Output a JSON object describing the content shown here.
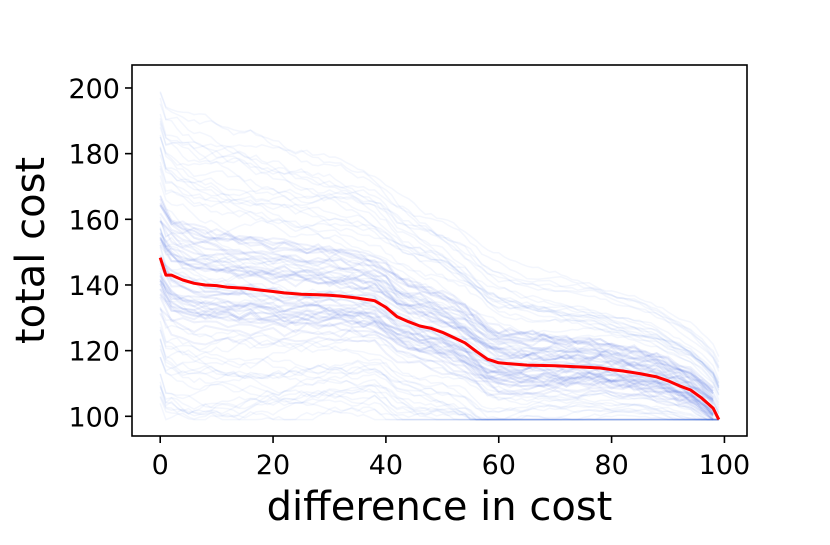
{
  "chart_data": {
    "type": "line",
    "title": "",
    "xlabel": "difference in cost",
    "ylabel": "total cost",
    "xlim": [
      -5,
      104
    ],
    "ylim": [
      94,
      207
    ],
    "xticks": [
      0,
      20,
      40,
      60,
      80,
      100
    ],
    "yticks": [
      100,
      120,
      140,
      160,
      180,
      200
    ],
    "grid": false,
    "legend": "none",
    "colors": {
      "trajectories": "#4169e1",
      "mean": "#ff0000"
    },
    "trajectory_count_shown": 60,
    "trajectory_opacity": 0.04,
    "series": [
      {
        "role": "mean",
        "x": [
          0,
          1,
          2,
          4,
          6,
          8,
          10,
          12,
          15,
          18,
          20,
          22,
          25,
          28,
          30,
          32,
          35,
          38,
          40,
          42,
          44,
          46,
          48,
          50,
          52,
          54,
          56,
          58,
          60,
          62,
          65,
          70,
          75,
          78,
          80,
          82,
          85,
          88,
          90,
          92,
          94,
          96,
          98,
          99
        ],
        "y": [
          148.3,
          143,
          143,
          141.5,
          140.5,
          140,
          139.8,
          139.3,
          139,
          138.4,
          138,
          137.6,
          137.2,
          137,
          136.9,
          136.6,
          136,
          135.2,
          133.2,
          130.3,
          128.8,
          127.5,
          126.8,
          125.6,
          124,
          122.4,
          119.8,
          117.4,
          116.3,
          116,
          115.6,
          115.4,
          115,
          114.7,
          114.2,
          113.8,
          113,
          112,
          110.8,
          109.3,
          108,
          105.5,
          102.5,
          99
        ]
      }
    ]
  }
}
